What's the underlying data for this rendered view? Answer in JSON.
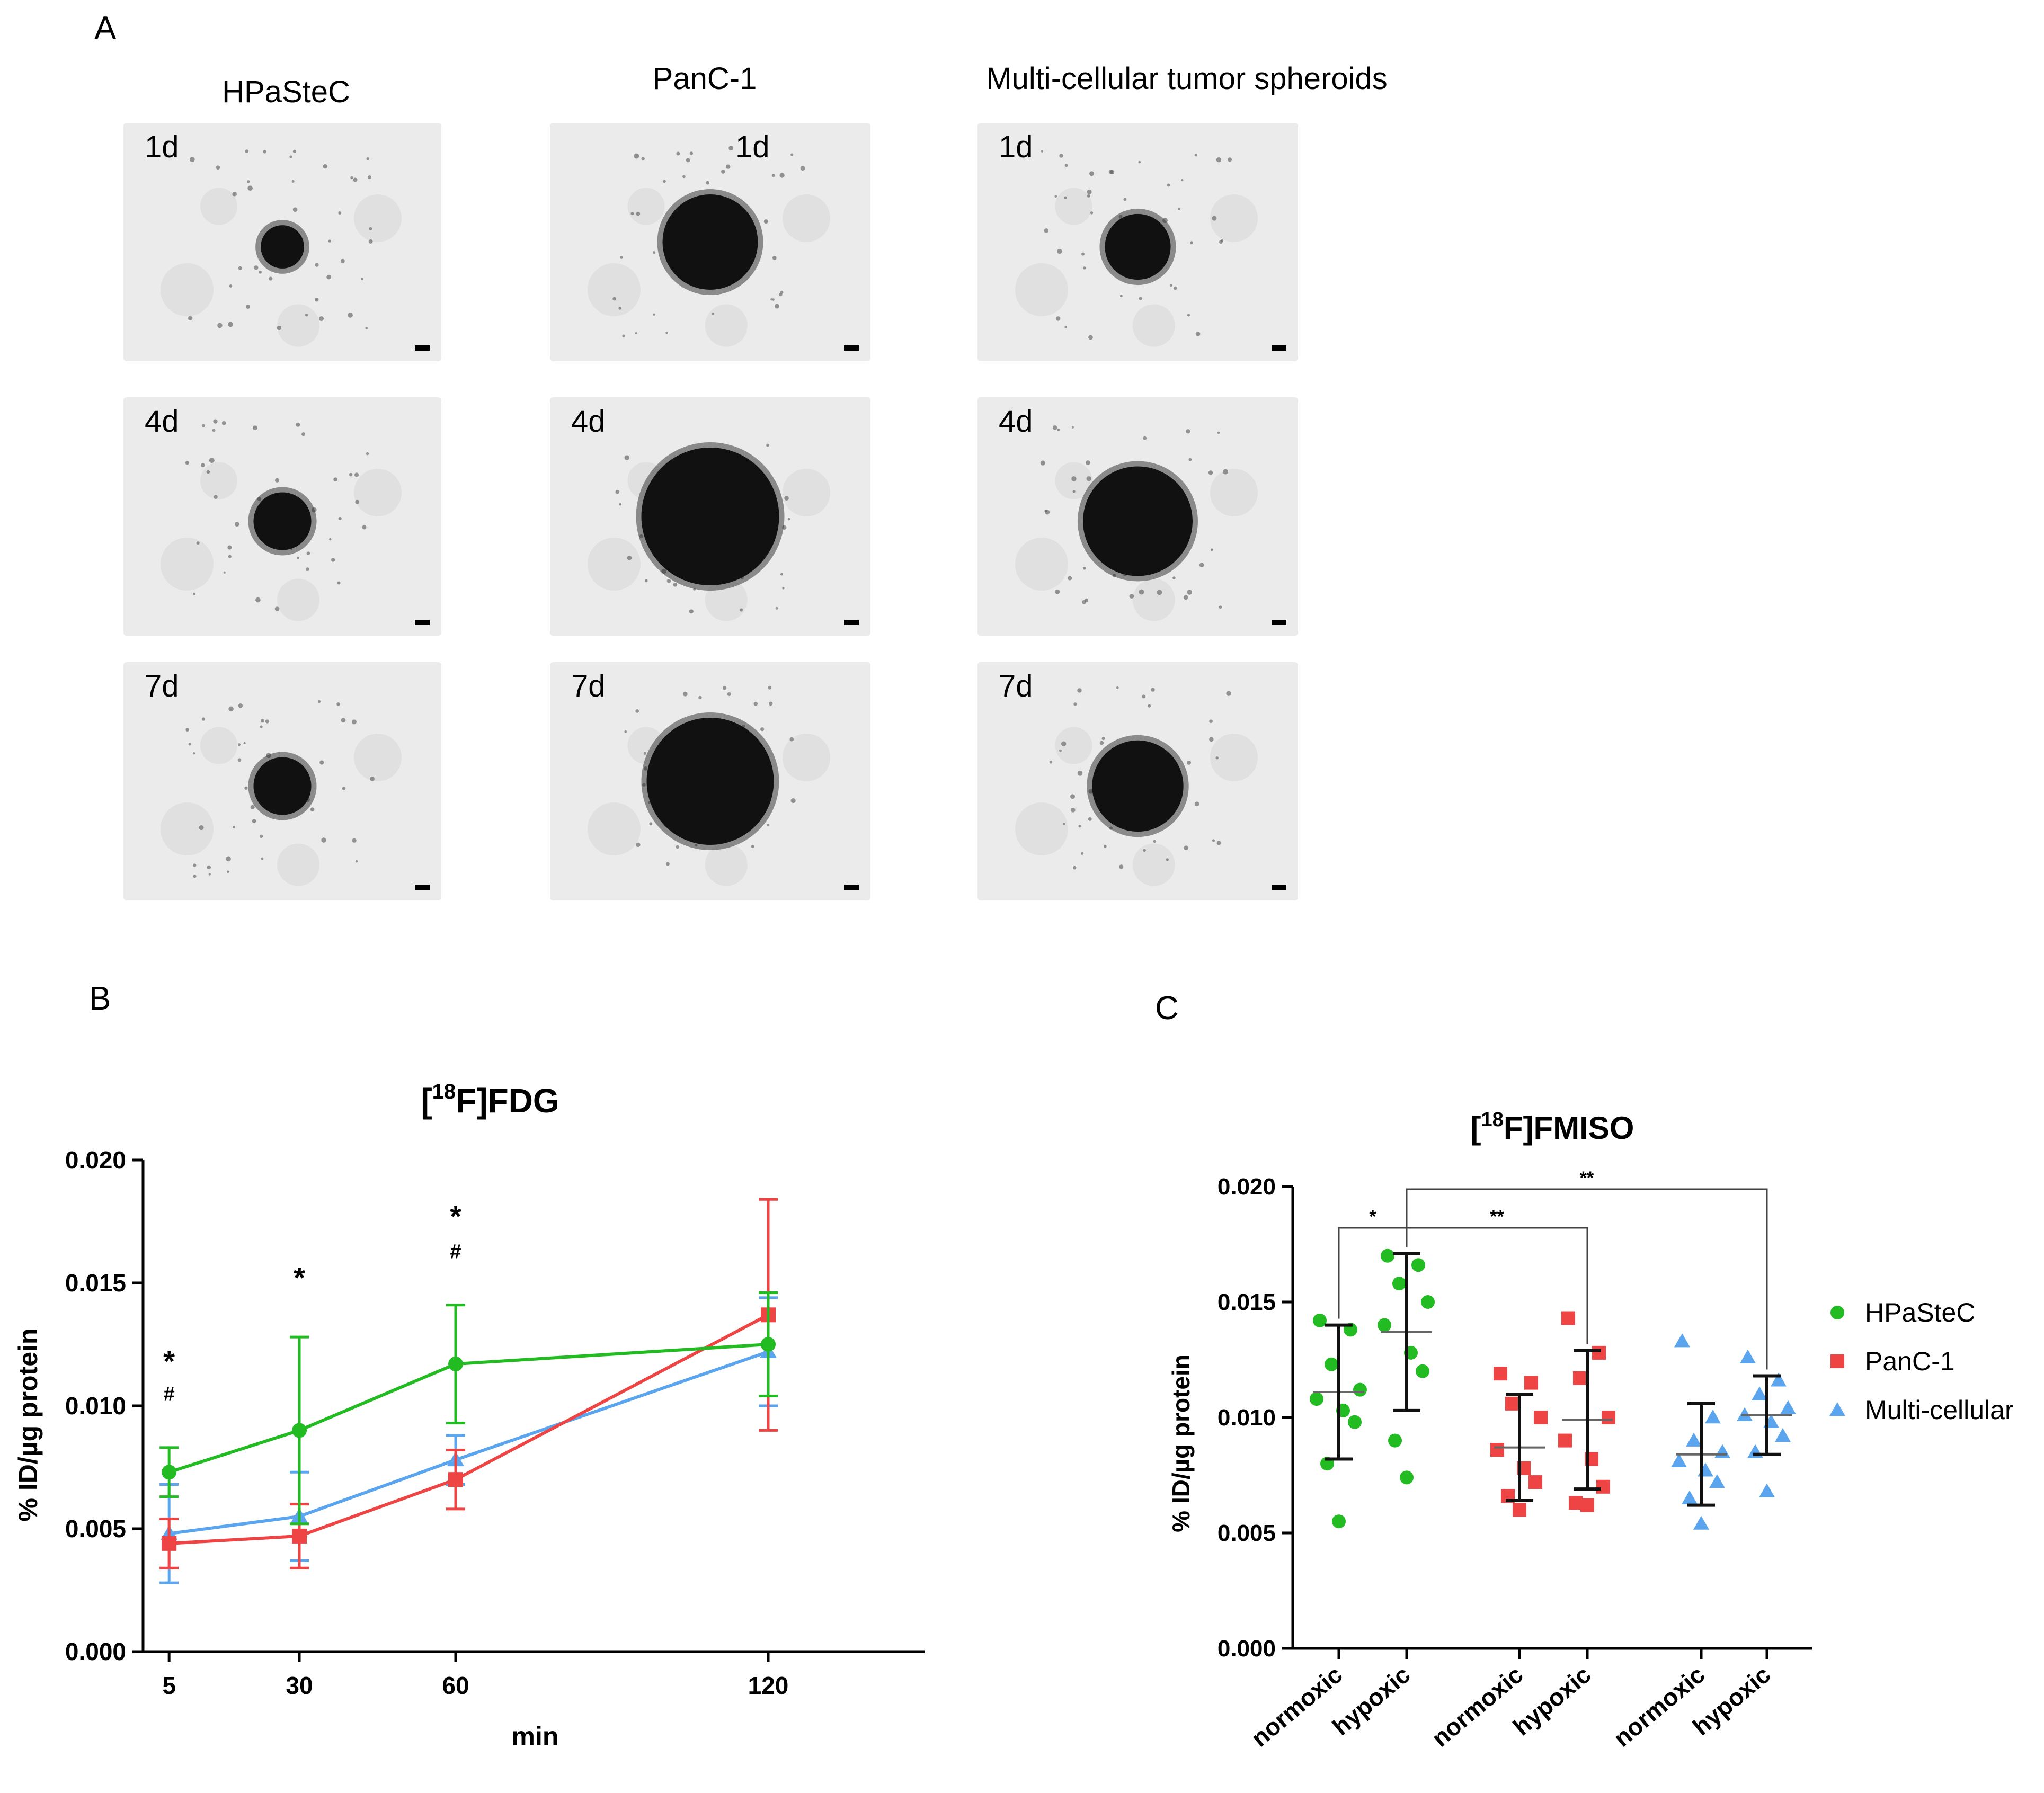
{
  "panels": {
    "a_letter": "A",
    "b_letter": "B",
    "c_letter": "C"
  },
  "microscopy": {
    "columns": [
      "HPaSteC",
      "PanC-1",
      "Multi-cellular tumor spheroids"
    ],
    "days": [
      "1d",
      "4d",
      "7d"
    ],
    "colors": {
      "background": "#ebebeb",
      "spheroid": "#111111"
    }
  },
  "chart_data": [
    {
      "id": "B",
      "type": "line",
      "title": "[18F]FDG",
      "title_parts": {
        "open": "[",
        "sup": "18",
        "rest": "F]FDG"
      },
      "xlabel": "min",
      "ylabel": "% ID/µg protein",
      "x": [
        5,
        30,
        60,
        120
      ],
      "xtick_labels": [
        "5",
        "30",
        "60",
        "120"
      ],
      "xlim": [
        0,
        150
      ],
      "ylim": [
        0,
        0.02
      ],
      "yticks": [
        0.0,
        0.005,
        0.01,
        0.015,
        0.02
      ],
      "ytick_labels": [
        "0.000",
        "0.005",
        "0.010",
        "0.015",
        "0.020"
      ],
      "series": [
        {
          "name": "HPaSteC",
          "color": "#22bb22",
          "marker": "circle",
          "values": [
            0.0073,
            0.009,
            0.0117,
            0.0125
          ],
          "err": [
            0.001,
            0.0038,
            0.0024,
            0.0021
          ]
        },
        {
          "name": "PanC-1",
          "color": "#ee4444",
          "marker": "square",
          "values": [
            0.0044,
            0.0047,
            0.007,
            0.0137
          ],
          "err": [
            0.001,
            0.0013,
            0.0012,
            0.0047
          ]
        },
        {
          "name": "Multi-cellular",
          "color": "#5aa5ee",
          "marker": "triangle",
          "values": [
            0.0048,
            0.0055,
            0.0078,
            0.0122
          ],
          "err": [
            0.002,
            0.0018,
            0.001,
            0.0022
          ]
        }
      ],
      "annotations": [
        {
          "x": 5,
          "text": "*",
          "y": 0.0114
        },
        {
          "x": 5,
          "text": "#",
          "y": 0.0102
        },
        {
          "x": 30,
          "text": "*",
          "y": 0.0148
        },
        {
          "x": 60,
          "text": "*",
          "y": 0.0173
        },
        {
          "x": 60,
          "text": "#",
          "y": 0.016
        }
      ]
    },
    {
      "id": "C",
      "type": "scatter",
      "title": "[18F]FMISO",
      "title_parts": {
        "open": "[",
        "sup": "18",
        "rest": "F]FMISO"
      },
      "ylabel": "% ID/µg protein",
      "categories": [
        "normoxic",
        "hypoxic",
        "normoxic",
        "hypoxic",
        "normoxic",
        "hypoxic"
      ],
      "ylim": [
        0,
        0.02
      ],
      "yticks": [
        0.0,
        0.005,
        0.01,
        0.015,
        0.02
      ],
      "ytick_labels": [
        "0.000",
        "0.005",
        "0.010",
        "0.015",
        "0.020"
      ],
      "groups": [
        {
          "series": "HPaSteC",
          "category": "normoxic",
          "color": "#22bb22",
          "marker": "circle",
          "points": [
            0.0142,
            0.0138,
            0.0123,
            0.0112,
            0.0108,
            0.0103,
            0.0098,
            0.008,
            0.0055
          ],
          "mean": 0.0111,
          "sd": 0.0029
        },
        {
          "series": "HPaSteC",
          "category": "hypoxic",
          "color": "#22bb22",
          "marker": "circle",
          "points": [
            0.017,
            0.0166,
            0.0158,
            0.015,
            0.014,
            0.0128,
            0.012,
            0.009,
            0.0074
          ],
          "mean": 0.0137,
          "sd": 0.0034
        },
        {
          "series": "PanC-1",
          "category": "normoxic",
          "color": "#ee4444",
          "marker": "square",
          "points": [
            0.0119,
            0.0115,
            0.0106,
            0.01,
            0.0086,
            0.0078,
            0.0072,
            0.0066,
            0.006
          ],
          "mean": 0.0087,
          "sd": 0.0023
        },
        {
          "series": "PanC-1",
          "category": "hypoxic",
          "color": "#ee4444",
          "marker": "square",
          "points": [
            0.0143,
            0.0128,
            0.0117,
            0.01,
            0.009,
            0.0082,
            0.007,
            0.0063,
            0.0062
          ],
          "mean": 0.0099,
          "sd": 0.003
        },
        {
          "series": "Multi-cellular",
          "category": "normoxic",
          "color": "#5aa5ee",
          "marker": "triangle",
          "points": [
            0.0133,
            0.01,
            0.009,
            0.0085,
            0.0081,
            0.0077,
            0.0072,
            0.0065,
            0.0054
          ],
          "mean": 0.0084,
          "sd": 0.0022
        },
        {
          "series": "Multi-cellular",
          "category": "hypoxic",
          "color": "#5aa5ee",
          "marker": "triangle",
          "points": [
            0.0126,
            0.0116,
            0.011,
            0.0104,
            0.0101,
            0.0098,
            0.0092,
            0.0085,
            0.0068
          ],
          "mean": 0.0101,
          "sd": 0.0017
        }
      ],
      "significance": [
        {
          "from": 0,
          "to": 1,
          "y": 0.0182,
          "label": "*"
        },
        {
          "from": 1,
          "to": 3,
          "y": 0.0182,
          "label": "**"
        },
        {
          "from": 1,
          "to": 5,
          "y": 0.0198,
          "label": "**"
        }
      ],
      "legend": {
        "position": "right",
        "entries": [
          "HPaSteC",
          "PanC-1",
          "Multi-cellular"
        ]
      }
    }
  ]
}
